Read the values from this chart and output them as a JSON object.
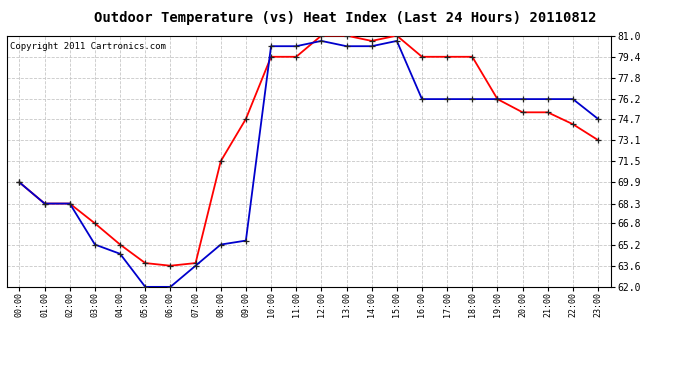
{
  "title": "Outdoor Temperature (vs) Heat Index (Last 24 Hours) 20110812",
  "copyright": "Copyright 2011 Cartronics.com",
  "x_labels": [
    "00:00",
    "01:00",
    "02:00",
    "03:00",
    "04:00",
    "05:00",
    "06:00",
    "07:00",
    "08:00",
    "09:00",
    "10:00",
    "11:00",
    "12:00",
    "13:00",
    "14:00",
    "15:00",
    "16:00",
    "17:00",
    "18:00",
    "19:00",
    "20:00",
    "21:00",
    "22:00",
    "23:00"
  ],
  "temp_red": [
    69.9,
    68.3,
    68.3,
    66.8,
    65.2,
    63.8,
    63.6,
    63.8,
    71.5,
    74.7,
    79.4,
    79.4,
    81.0,
    81.0,
    80.6,
    81.0,
    79.4,
    79.4,
    79.4,
    76.2,
    75.2,
    75.2,
    74.3,
    73.1
  ],
  "heat_blue": [
    69.9,
    68.3,
    68.3,
    65.2,
    64.5,
    62.0,
    62.0,
    63.6,
    65.2,
    65.5,
    80.2,
    80.2,
    80.6,
    80.2,
    80.2,
    80.6,
    76.2,
    76.2,
    76.2,
    76.2,
    76.2,
    76.2,
    76.2,
    74.7
  ],
  "ylim_min": 62.0,
  "ylim_max": 81.0,
  "yticks": [
    62.0,
    63.6,
    65.2,
    66.8,
    68.3,
    69.9,
    71.5,
    73.1,
    74.7,
    76.2,
    77.8,
    79.4,
    81.0
  ],
  "bg_color": "#ffffff",
  "grid_color": "#c8c8c8",
  "line_red": "#ff0000",
  "line_blue": "#0000cc",
  "marker_dark": "#222222",
  "title_fontsize": 10,
  "copyright_fontsize": 6.5
}
